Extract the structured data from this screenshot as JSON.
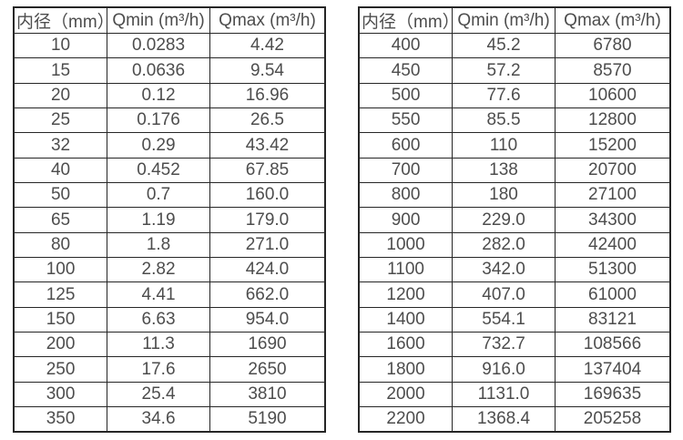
{
  "tables": [
    {
      "name": "flow-rate-table-small-diameters",
      "headers": [
        "内径（mm）",
        "Qmin (m³/h)",
        "Qmax (m³/h)"
      ],
      "rows": [
        [
          "10",
          "0.0283",
          "4.42"
        ],
        [
          "15",
          "0.0636",
          "9.54"
        ],
        [
          "20",
          "0.12",
          "16.96"
        ],
        [
          "25",
          "0.176",
          "26.5"
        ],
        [
          "32",
          "0.29",
          "43.42"
        ],
        [
          "40",
          "0.452",
          "67.85"
        ],
        [
          "50",
          "0.7",
          "160.0"
        ],
        [
          "65",
          "1.19",
          "179.0"
        ],
        [
          "80",
          "1.8",
          "271.0"
        ],
        [
          "100",
          "2.82",
          "424.0"
        ],
        [
          "125",
          "4.41",
          "662.0"
        ],
        [
          "150",
          "6.63",
          "954.0"
        ],
        [
          "200",
          "11.3",
          "1690"
        ],
        [
          "250",
          "17.6",
          "2650"
        ],
        [
          "300",
          "25.4",
          "3810"
        ],
        [
          "350",
          "34.6",
          "5190"
        ]
      ]
    },
    {
      "name": "flow-rate-table-large-diameters",
      "headers": [
        "内径（mm）",
        "Qmin (m³/h)",
        "Qmax (m³/h)"
      ],
      "rows": [
        [
          "400",
          "45.2",
          "6780"
        ],
        [
          "450",
          "57.2",
          "8570"
        ],
        [
          "500",
          "77.6",
          "10600"
        ],
        [
          "550",
          "85.5",
          "12800"
        ],
        [
          "600",
          "110",
          "15200"
        ],
        [
          "700",
          "138",
          "20700"
        ],
        [
          "800",
          "180",
          "27100"
        ],
        [
          "900",
          "229.0",
          "34300"
        ],
        [
          "1000",
          "282.0",
          "42400"
        ],
        [
          "1100",
          "342.0",
          "51300"
        ],
        [
          "1200",
          "407.0",
          "61000"
        ],
        [
          "1400",
          "554.1",
          "83121"
        ],
        [
          "1600",
          "732.7",
          "108566"
        ],
        [
          "1800",
          "916.0",
          "137404"
        ],
        [
          "2000",
          "1131.0",
          "169635"
        ],
        [
          "2200",
          "1368.4",
          "205258"
        ]
      ]
    }
  ],
  "colors": {
    "border": "#262626",
    "text": "#4d4d4d",
    "background": "#ffffff"
  }
}
